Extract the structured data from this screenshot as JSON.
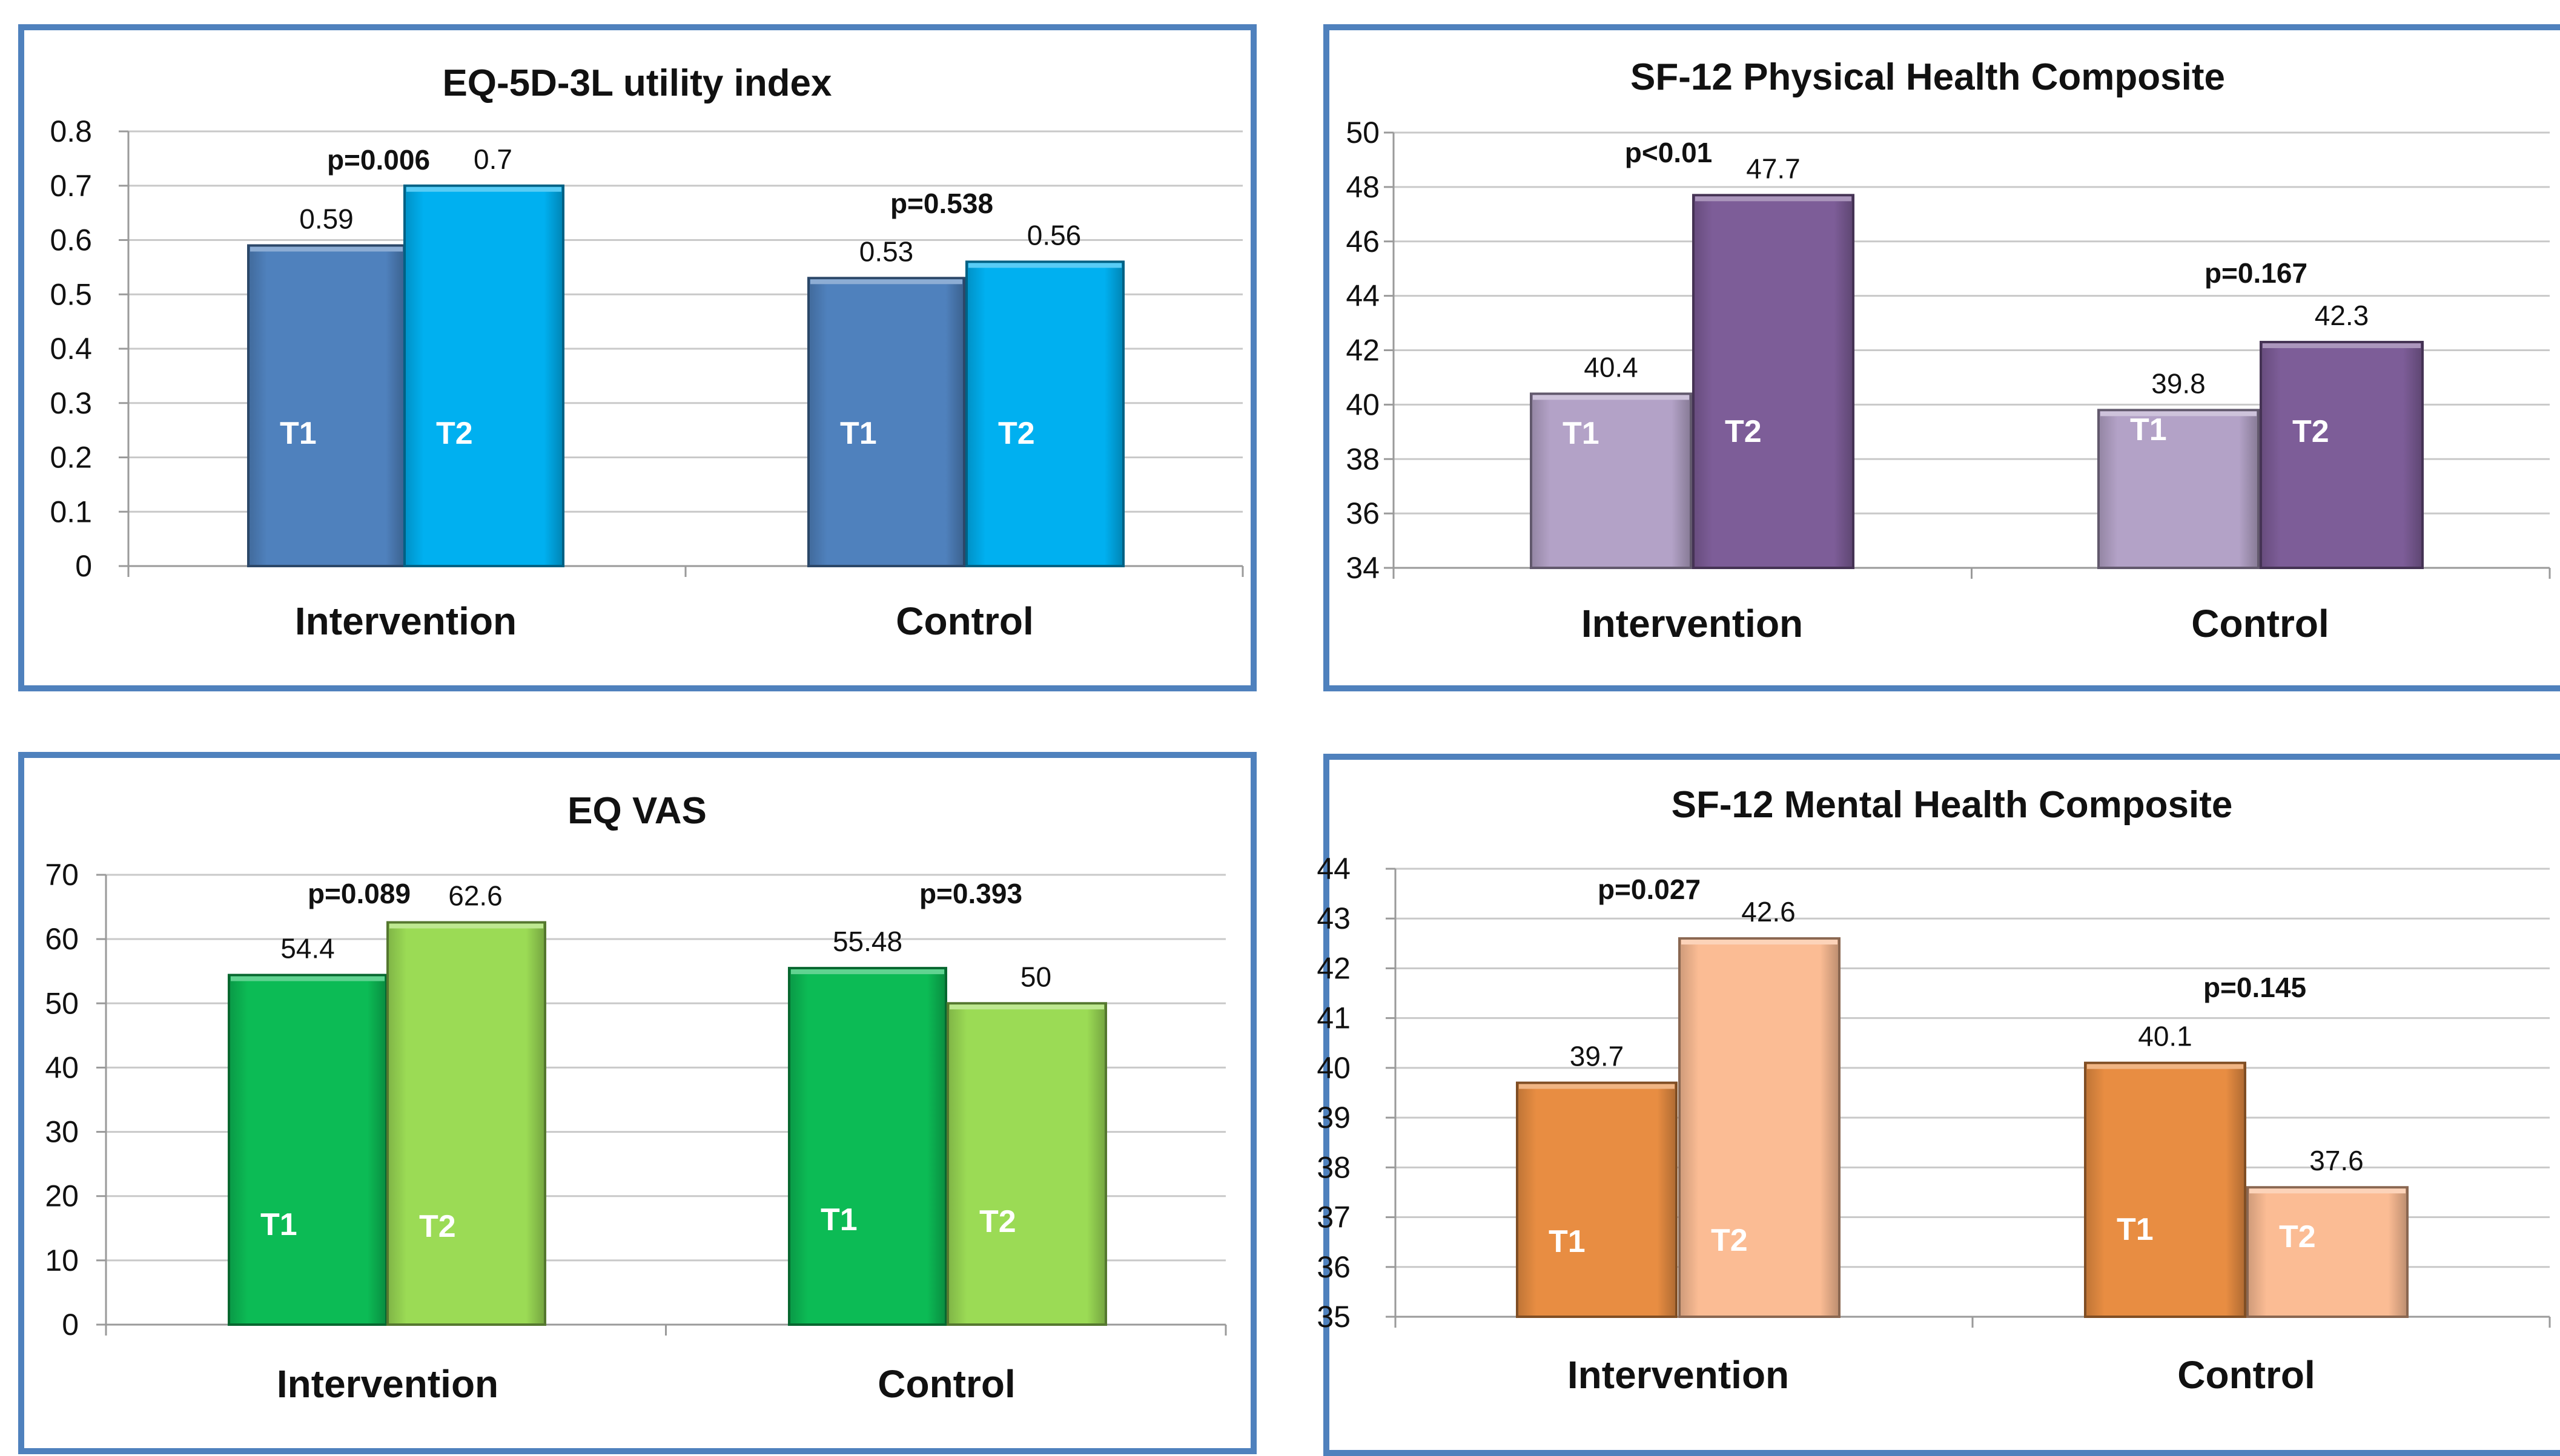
{
  "chart_data": [
    {
      "type": "bar",
      "title": "EQ-5D-3L utility index",
      "categories": [
        "Intervention",
        "Control"
      ],
      "series": [
        {
          "name": "T1",
          "color": "#4f81bd",
          "values": [
            0.59,
            0.53
          ]
        },
        {
          "name": "T2",
          "color": "#00b0f0",
          "values": [
            0.7,
            0.56
          ]
        }
      ],
      "value_labels": [
        [
          "0.59",
          "0.53"
        ],
        [
          "0.7",
          "0.56"
        ]
      ],
      "p_values": [
        "p=0.006",
        "p=0.538"
      ],
      "ylim": [
        0,
        0.8
      ],
      "yticks": [
        "0",
        "0.1",
        "0.2",
        "0.3",
        "0.4",
        "0.5",
        "0.6",
        "0.7",
        "0.8"
      ],
      "grid": true
    },
    {
      "type": "bar",
      "title": "SF-12 Physical Health Composite",
      "categories": [
        "Intervention",
        "Control"
      ],
      "series": [
        {
          "name": "T1",
          "color": "#b3a2c7",
          "values": [
            40.4,
            39.8
          ]
        },
        {
          "name": "T2",
          "color": "#7d5d98",
          "values": [
            47.7,
            42.3
          ]
        }
      ],
      "value_labels": [
        [
          "40.4",
          "39.8"
        ],
        [
          "47.7",
          "42.3"
        ]
      ],
      "p_values": [
        "p<0.01",
        "p=0.167"
      ],
      "ylim": [
        34,
        50
      ],
      "yticks": [
        "34",
        "36",
        "38",
        "40",
        "42",
        "44",
        "46",
        "48",
        "50"
      ],
      "grid": true
    },
    {
      "type": "bar",
      "title": "EQ VAS",
      "categories": [
        "Intervention",
        "Control"
      ],
      "series": [
        {
          "name": "T1",
          "color": "#0cbb55",
          "values": [
            54.4,
            55.48
          ]
        },
        {
          "name": "T2",
          "color": "#9bdb55",
          "values": [
            62.6,
            50
          ]
        }
      ],
      "value_labels": [
        [
          "54.4",
          "55.48"
        ],
        [
          "62.6",
          "50"
        ]
      ],
      "p_values": [
        "p=0.089",
        "p=0.393"
      ],
      "ylim": [
        0,
        70
      ],
      "yticks": [
        "0",
        "10",
        "20",
        "30",
        "40",
        "50",
        "60",
        "70"
      ],
      "grid": true
    },
    {
      "type": "bar",
      "title": "SF-12 Mental Health Composite",
      "categories": [
        "Intervention",
        "Control"
      ],
      "series": [
        {
          "name": "T1",
          "color": "#e88d42",
          "values": [
            39.7,
            40.1
          ]
        },
        {
          "name": "T2",
          "color": "#fbbc94",
          "values": [
            42.6,
            37.6
          ]
        }
      ],
      "value_labels": [
        [
          "39.7",
          "40.1"
        ],
        [
          "42.6",
          "37.6"
        ]
      ],
      "p_values": [
        "p=0.027",
        "p=0.145"
      ],
      "ylim": [
        35,
        44
      ],
      "yticks": [
        "35",
        "36",
        "37",
        "38",
        "39",
        "40",
        "41",
        "42",
        "43",
        "44"
      ],
      "grid": true
    }
  ]
}
